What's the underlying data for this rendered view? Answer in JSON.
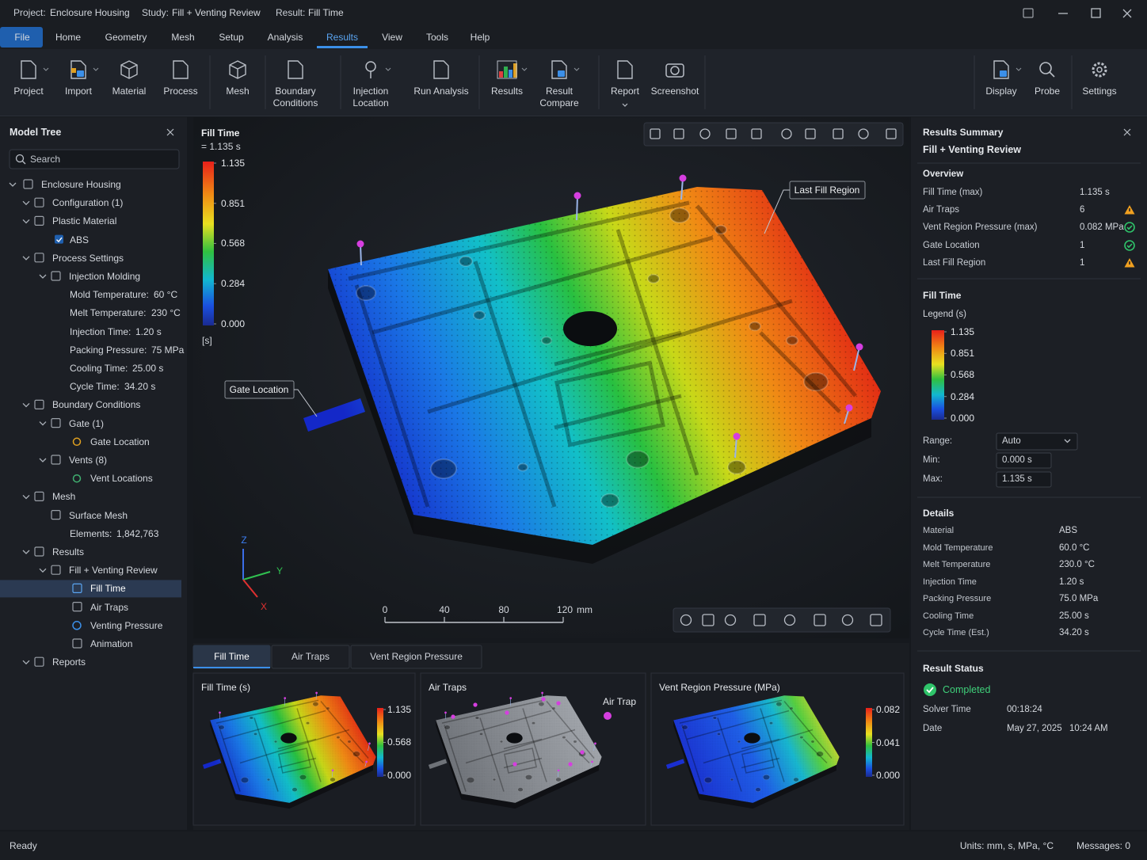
{
  "titlebar": {
    "project_label": "Project:",
    "project": "Enclosure Housing",
    "study_label": "Study:",
    "study": "Fill + Venting Review",
    "result_label": "Result:",
    "result": "Fill Time"
  },
  "menu": {
    "items": [
      "File",
      "Home",
      "Geometry",
      "Mesh",
      "Setup",
      "Analysis",
      "Results",
      "View",
      "Tools",
      "Help"
    ],
    "active_index": 6
  },
  "ribbon": {
    "buttons": [
      {
        "label": "Project",
        "dropdown": true
      },
      {
        "label": "Import",
        "dropdown": true
      },
      {
        "label": "Material"
      },
      {
        "label": "Process"
      },
      {
        "label": "Mesh"
      },
      {
        "label": "Boundary Conditions"
      },
      {
        "label": "Injection Location",
        "dropdown": true
      },
      {
        "label": "Run Analysis"
      },
      {
        "label": "Results",
        "dropdown": true
      },
      {
        "label": "Result Compare",
        "dropdown": true
      },
      {
        "label": "Report",
        "dropdown": true
      },
      {
        "label": "Screenshot"
      },
      {
        "label": "Display",
        "dropdown": true
      },
      {
        "label": "Probe"
      },
      {
        "label": "Settings"
      }
    ]
  },
  "model_tree": {
    "title": "Model Tree",
    "search_placeholder": "Search",
    "nodes": [
      {
        "label": "Enclosure Housing",
        "level": 0,
        "expanded": true
      },
      {
        "label": "Configuration (1)",
        "level": 1,
        "expanded": true
      },
      {
        "label": "Plastic Material",
        "level": 1,
        "expanded": true
      },
      {
        "label": "ABS",
        "level": 2,
        "checkbox": true
      },
      {
        "label": "Process Settings",
        "level": 1,
        "expanded": true
      },
      {
        "label": "Injection Molding",
        "level": 2,
        "expanded": true
      },
      {
        "label": "Mold Temperature:",
        "value": "60 °C",
        "level": 3
      },
      {
        "label": "Melt Temperature:",
        "value": "230 °C",
        "level": 3
      },
      {
        "label": "Injection Time:",
        "value": "1.20 s",
        "level": 3
      },
      {
        "label": "Packing Pressure:",
        "value": "75 MPa",
        "level": 3
      },
      {
        "label": "Cooling Time:",
        "value": "25.00 s",
        "level": 3
      },
      {
        "label": "Cycle Time:",
        "value": "34.20 s",
        "level": 3
      },
      {
        "label": "Boundary Conditions",
        "level": 1,
        "expanded": true
      },
      {
        "label": "Gate (1)",
        "level": 2,
        "expanded": true
      },
      {
        "label": "Gate Location",
        "level": 3
      },
      {
        "label": "Vents (8)",
        "level": 2,
        "expanded": true
      },
      {
        "label": "Vent Locations",
        "level": 3
      },
      {
        "label": "Mesh",
        "level": 1,
        "expanded": true
      },
      {
        "label": "Surface Mesh",
        "level": 2
      },
      {
        "label": "Elements:",
        "value": "1,842,763",
        "level": 3
      },
      {
        "label": "Results",
        "level": 1,
        "expanded": true
      },
      {
        "label": "Fill + Venting Review",
        "level": 2,
        "expanded": true
      },
      {
        "label": "Fill Time",
        "level": 3,
        "selected": true
      },
      {
        "label": "Air Traps",
        "level": 3
      },
      {
        "label": "Venting Pressure",
        "level": 3
      },
      {
        "label": "Animation",
        "level": 3
      },
      {
        "label": "Reports",
        "level": 1,
        "expanded": true
      }
    ]
  },
  "viewport": {
    "legend": {
      "title": "Fill Time",
      "subtitle": "= 1.135 s",
      "unit": "[s]",
      "lim": [
        0,
        1.135
      ],
      "ticks": [
        1.135,
        0.851,
        0.568,
        0.284,
        {
          "value": 0,
          "label": "0.000"
        }
      ]
    },
    "callouts": [
      {
        "label": "Last Fill Region"
      },
      {
        "label": "Gate Location"
      }
    ],
    "axes": {
      "z": "Z",
      "y": "Y",
      "x": "X"
    },
    "scale_bar": {
      "unit": "mm",
      "lim": [
        0,
        120
      ],
      "ticks": [
        0,
        40,
        80,
        120
      ]
    }
  },
  "result_tabs": {
    "items": [
      "Fill Time",
      "Air Traps",
      "Vent Region Pressure"
    ],
    "active_index": 0
  },
  "thumbnails": [
    {
      "title": "Fill Time (s)",
      "legend": {
        "lim": [
          0,
          1.135
        ],
        "ticks": [
          1.135,
          0.568,
          {
            "value": 0,
            "label": "0.000"
          }
        ]
      }
    },
    {
      "title": "Air Traps",
      "legend_label": "Air Trap",
      "marker_color": "#d63ee0"
    },
    {
      "title": "Vent Region Pressure (MPa)",
      "legend": {
        "lim": [
          0,
          0.082
        ],
        "ticks": [
          0.082,
          0.041,
          {
            "value": 0,
            "label": "0.000"
          }
        ]
      }
    }
  ],
  "results_summary": {
    "title": "Results Summary",
    "subtitle": "Fill + Venting Review",
    "overview": {
      "heading": "Overview",
      "rows": [
        {
          "label": "Fill Time (max)",
          "value": "1.135 s"
        },
        {
          "label": "Air Traps",
          "value": "6",
          "status": "warning"
        },
        {
          "label": "Vent Region Pressure (max)",
          "value": "0.082 MPa",
          "status": "ok"
        },
        {
          "label": "Gate Location",
          "value": "1",
          "status": "ok"
        },
        {
          "label": "Last Fill Region",
          "value": "1",
          "status": "warning"
        }
      ]
    },
    "fill_time": {
      "heading": "Fill Time",
      "legend_title": "Legend (s)",
      "lim": [
        0,
        1.135
      ],
      "ticks": [
        1.135,
        0.851,
        0.568,
        0.284,
        {
          "value": 0,
          "label": "0.000"
        }
      ],
      "range_label": "Range:",
      "range": "Auto",
      "min_label": "Min:",
      "min": "0.000 s",
      "max_label": "Max:",
      "max": "1.135 s"
    },
    "details": {
      "heading": "Details",
      "rows": [
        {
          "label": "Material",
          "value": "ABS"
        },
        {
          "label": "Mold Temperature",
          "value": "60.0 °C"
        },
        {
          "label": "Melt Temperature",
          "value": "230.0 °C"
        },
        {
          "label": "Injection Time",
          "value": "1.20 s"
        },
        {
          "label": "Packing Pressure",
          "value": "75.0 MPa"
        },
        {
          "label": "Cooling Time",
          "value": "25.00 s"
        },
        {
          "label": "Cycle Time (Est.)",
          "value": "34.20 s"
        }
      ]
    },
    "status": {
      "heading": "Result Status",
      "state": "Completed",
      "rows": [
        {
          "label": "Solver Time",
          "value": "00:18:24"
        },
        {
          "label": "Date",
          "value": "May 27, 2025",
          "time": "10:24 AM"
        }
      ]
    }
  },
  "statusbar": {
    "left": "Ready",
    "units": "Units: mm, s, MPa, °C",
    "messages": "Messages: 0"
  }
}
